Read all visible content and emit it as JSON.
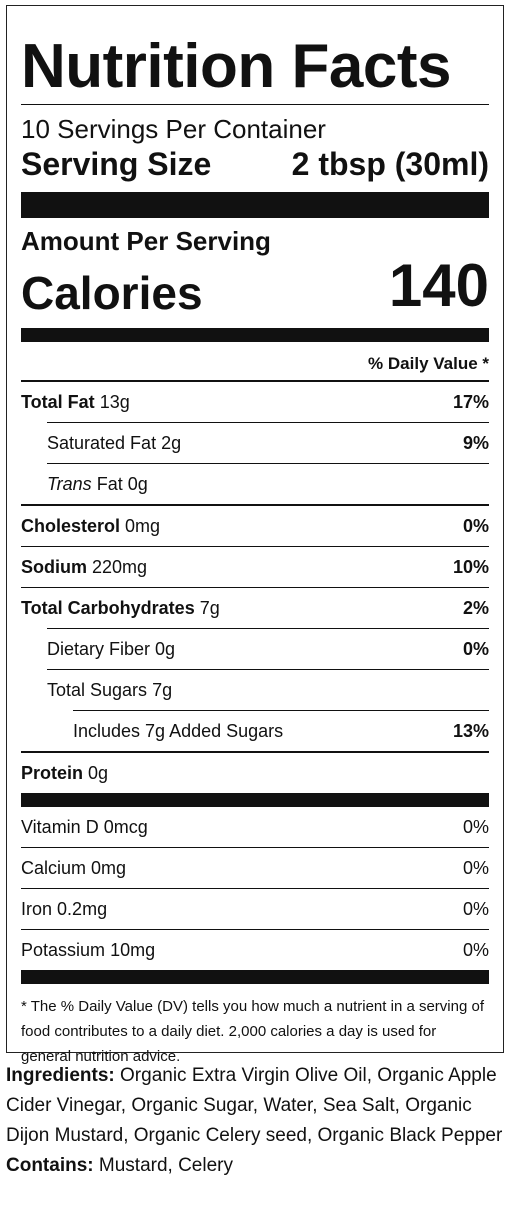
{
  "label": {
    "title": "Nutrition Facts",
    "servings_per_container": "10 Servings Per Container",
    "serving_size_label": "Serving Size",
    "serving_size_value": "2 tbsp (30ml)",
    "amount_per_serving": "Amount Per Serving",
    "calories_label": "Calories",
    "calories_value": "140",
    "daily_value_header": "% Daily Value *",
    "nutrients": [
      {
        "name": "Total Fat",
        "amount": "13g",
        "dv": "17%"
      },
      {
        "name": "Saturated Fat",
        "amount": "2g",
        "dv": "9%"
      },
      {
        "name_italic": "Trans",
        "name": "Fat",
        "amount": "0g",
        "dv": ""
      },
      {
        "name": "Cholesterol",
        "amount": "0mg",
        "dv": "0%"
      },
      {
        "name": "Sodium",
        "amount": "220mg",
        "dv": "10%"
      },
      {
        "name": "Total Carbohydrates",
        "amount": "7g",
        "dv": "2%"
      },
      {
        "name": "Dietary Fiber",
        "amount": "0g",
        "dv": "0%"
      },
      {
        "name": "Total Sugars",
        "amount": "7g",
        "dv": ""
      },
      {
        "name": "Includes 7g Added Sugars",
        "amount": "",
        "dv": "13%"
      },
      {
        "name": "Protein",
        "amount": "0g",
        "dv": ""
      }
    ],
    "vitamins": [
      {
        "name": "Vitamin D",
        "amount": "0mcg",
        "dv": "0%"
      },
      {
        "name": "Calcium",
        "amount": "0mg",
        "dv": "0%"
      },
      {
        "name": "Iron",
        "amount": "0.2mg",
        "dv": "0%"
      },
      {
        "name": "Potassium",
        "amount": "10mg",
        "dv": "0%"
      }
    ],
    "footnote": "* The % Daily Value (DV) tells you how much a nutrient in a serving of food contributes to a daily diet. 2,000 calories a day is used for general nutrition advice."
  },
  "ingredients": {
    "label": "Ingredients:",
    "text": "Organic Extra Virgin Olive Oil, Organic Apple Cider Vinegar, Organic Sugar, Water, Sea Salt, Organic Dijon Mustard, Organic Celery seed, Organic Black Pepper"
  },
  "contains": {
    "label": "Contains:",
    "text": "Mustard, Celery"
  }
}
